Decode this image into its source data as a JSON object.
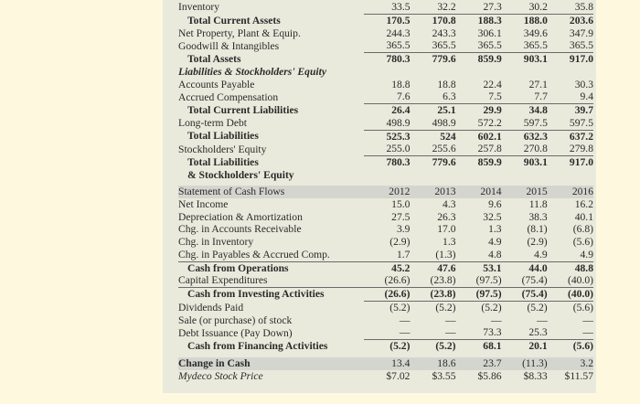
{
  "balance_sheet": {
    "rows": [
      {
        "label": "Inventory",
        "values": [
          "33.5",
          "32.2",
          "27.3",
          "30.2",
          "35.8"
        ],
        "style": "",
        "ul": "nums"
      },
      {
        "label": "Total Current Assets",
        "values": [
          "170.5",
          "170.8",
          "188.3",
          "188.0",
          "203.6"
        ],
        "style": "bold indent"
      },
      {
        "label": "Net Property, Plant & Equip.",
        "values": [
          "244.3",
          "243.3",
          "306.1",
          "349.6",
          "347.9"
        ],
        "style": ""
      },
      {
        "label": "Goodwill & Intangibles",
        "values": [
          "365.5",
          "365.5",
          "365.5",
          "365.5",
          "365.5"
        ],
        "style": "",
        "ul": "nums"
      },
      {
        "label": "Total Assets",
        "values": [
          "780.3",
          "779.6",
          "859.9",
          "903.1",
          "917.0"
        ],
        "style": "bold indent"
      },
      {
        "label": "Liabilities & Stockholders' Equity",
        "values": [
          "",
          "",
          "",
          "",
          ""
        ],
        "style": "boldital"
      },
      {
        "label": "Accounts Payable",
        "values": [
          "18.8",
          "18.8",
          "22.4",
          "27.1",
          "30.3"
        ],
        "style": ""
      },
      {
        "label": "Accrued Compensation",
        "values": [
          "7.6",
          "6.3",
          "7.5",
          "7.7",
          "9.4"
        ],
        "style": "",
        "ul": "nums"
      },
      {
        "label": "Total Current Liabilities",
        "values": [
          "26.4",
          "25.1",
          "29.9",
          "34.8",
          "39.7"
        ],
        "style": "bold indent"
      },
      {
        "label": "Long-term Debt",
        "values": [
          "498.9",
          "498.9",
          "572.2",
          "597.5",
          "597.5"
        ],
        "style": "",
        "ul": "nums"
      },
      {
        "label": "Total Liabilities",
        "values": [
          "525.3",
          "524",
          "602.1",
          "632.3",
          "637.2"
        ],
        "style": "bold indent"
      },
      {
        "label": "Stockholders' Equity",
        "values": [
          "255.0",
          "255.6",
          "257.8",
          "270.8",
          "279.8"
        ],
        "style": "",
        "ul": "nums"
      },
      {
        "label": "Total Liabilities",
        "values": [
          "780.3",
          "779.6",
          "859.9",
          "903.1",
          "917.0"
        ],
        "style": "bold indent"
      },
      {
        "label": "& Stockholders' Equity",
        "values": [
          "",
          "",
          "",
          "",
          ""
        ],
        "style": "bold indent"
      }
    ]
  },
  "cash_flows": {
    "header": {
      "label": "Statement of Cash Flows",
      "values": [
        "2012",
        "2013",
        "2014",
        "2015",
        "2016"
      ]
    },
    "rows": [
      {
        "label": "Net Income",
        "values": [
          "15.0",
          "4.3",
          "9.6",
          "11.8",
          "16.2"
        ],
        "style": ""
      },
      {
        "label": "Depreciation & Amortization",
        "values": [
          "27.5",
          "26.3",
          "32.5",
          "38.3",
          "40.1"
        ],
        "style": ""
      },
      {
        "label": "Chg. in Accounts Receivable",
        "values": [
          "3.9",
          "17.0",
          "1.3",
          "(8.1)",
          "(6.8)"
        ],
        "style": ""
      },
      {
        "label": "Chg. in Inventory",
        "values": [
          "(2.9)",
          "1.3",
          "4.9",
          "(2.9)",
          "(5.6)"
        ],
        "style": ""
      },
      {
        "label": "Chg. in Payables & Accrued Comp.",
        "values": [
          "1.7",
          "(1.3)",
          "4.8",
          "4.9",
          "4.9"
        ],
        "style": "",
        "ul": "all"
      },
      {
        "label": "Cash from Operations",
        "values": [
          "45.2",
          "47.6",
          "53.1",
          "44.0",
          "48.8"
        ],
        "style": "bold indent"
      },
      {
        "label": "Capital Expenditures",
        "values": [
          "(26.6)",
          "(23.8)",
          "(97.5)",
          "(75.4)",
          "(40.0)"
        ],
        "style": "",
        "ul": "label"
      },
      {
        "label": "Cash from Investing Activities",
        "values": [
          "(26.6)",
          "(23.8)",
          "(97.5)",
          "(75.4)",
          "(40.0)"
        ],
        "style": "bold indent",
        "ul": "nums"
      },
      {
        "label": "Dividends Paid",
        "values": [
          "(5.2)",
          "(5.2)",
          "(5.2)",
          "(5.2)",
          "(5.6)"
        ],
        "style": ""
      },
      {
        "label": "Sale (or purchase) of stock",
        "values": [
          "—",
          "—",
          "—",
          "—",
          "—"
        ],
        "style": ""
      },
      {
        "label": "Debt Issuance (Pay Down)",
        "values": [
          "—",
          "—",
          "73.3",
          "25.3",
          "—"
        ],
        "style": "",
        "ul": "nums"
      },
      {
        "label": "Cash from Financing Activities",
        "values": [
          "(5.2)",
          "(5.2)",
          "68.1",
          "20.1",
          "(5.6)"
        ],
        "style": "bold indent"
      },
      {
        "label": "Change in Cash",
        "values": [
          "13.4",
          "18.6",
          "23.7",
          "(11.3)",
          "3.2"
        ],
        "style": "band boldlabel",
        "gap": true
      },
      {
        "label": "Mydeco Stock Price",
        "values": [
          "$7.02",
          "$3.55",
          "$5.86",
          "$8.33",
          "$11.57"
        ],
        "style": "ital"
      }
    ]
  }
}
